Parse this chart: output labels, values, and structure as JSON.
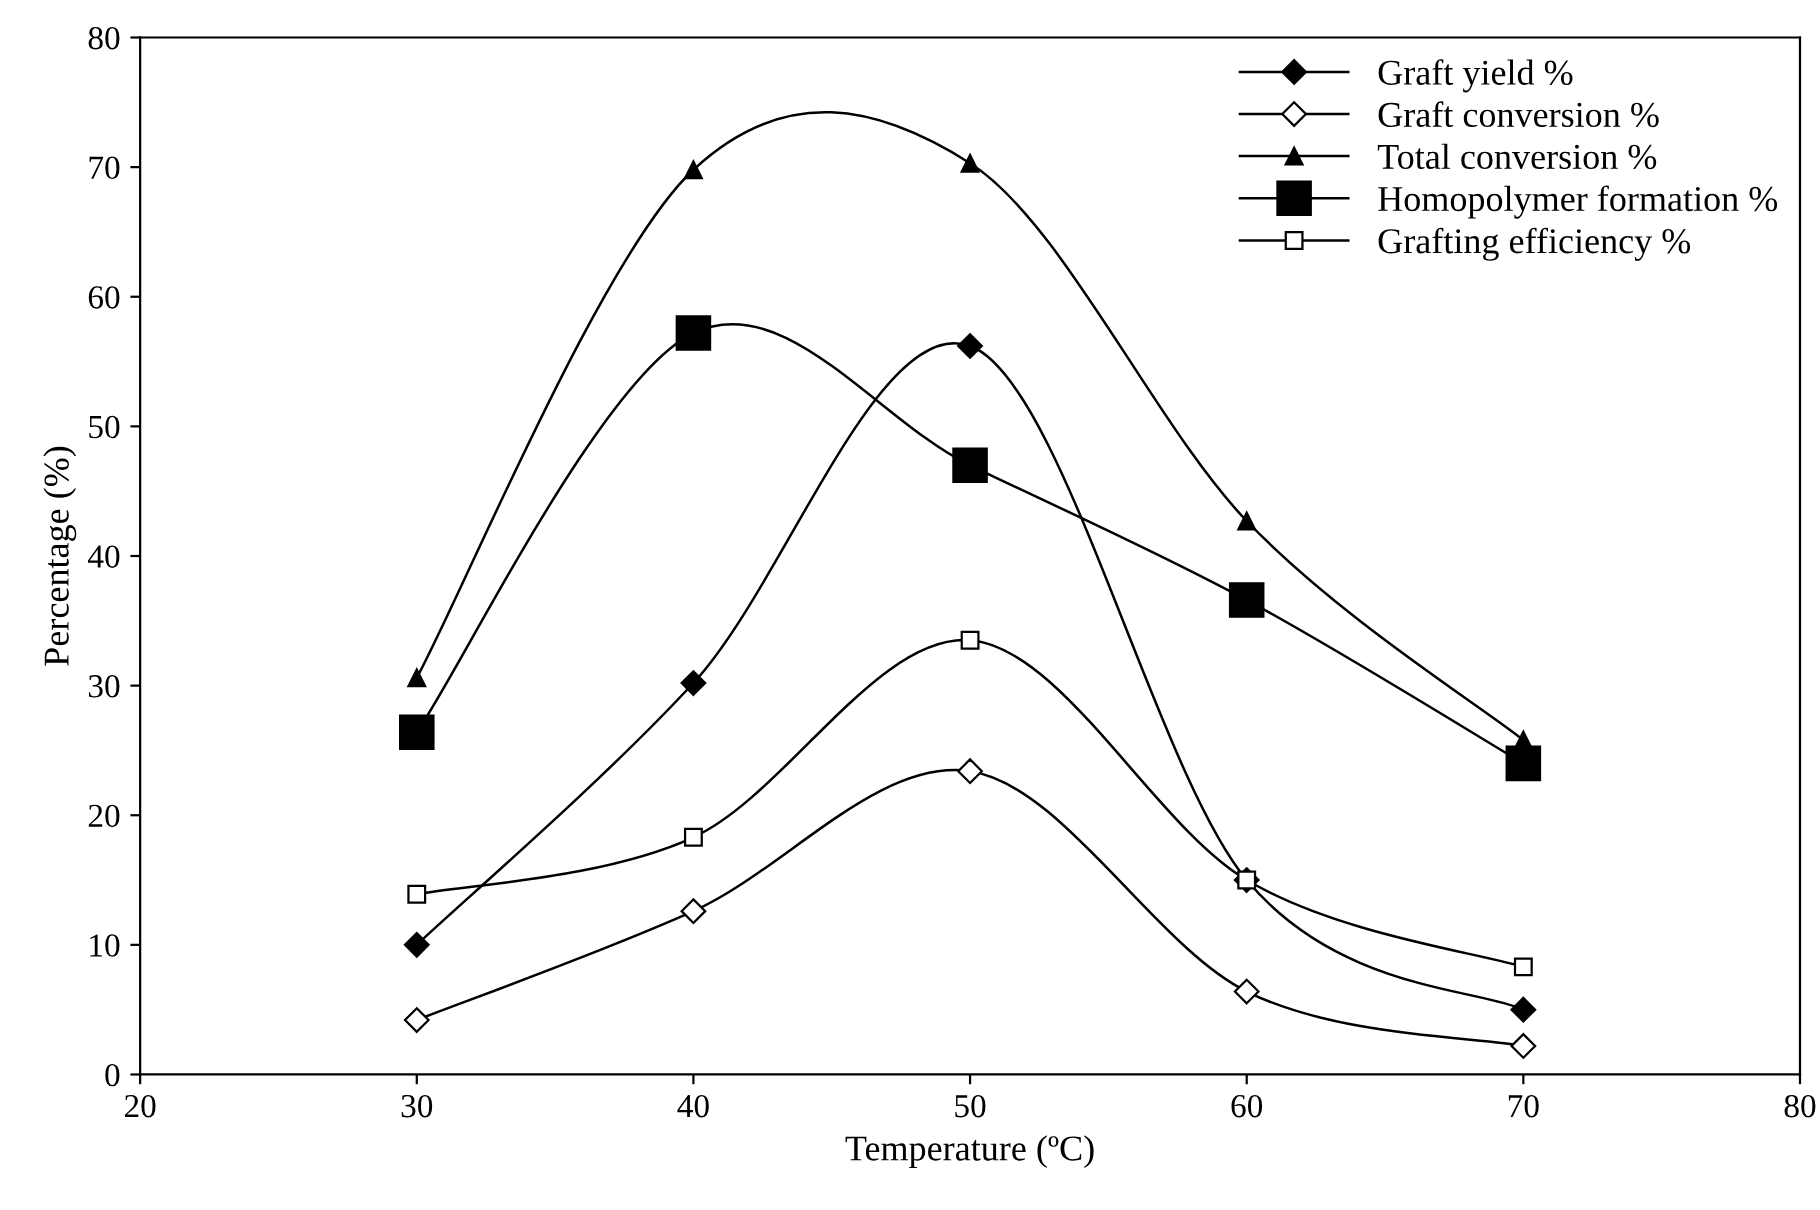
{
  "chart_data": {
    "type": "line",
    "xlabel": "Temperature (ºC)",
    "ylabel": "Percentage (%)",
    "x": [
      30,
      40,
      50,
      60,
      70
    ],
    "series": [
      {
        "name": "Graft yield %",
        "color": "#000000",
        "marker": "diamond",
        "values": [
          10.0,
          30.2,
          56.2,
          15.0,
          5.0
        ]
      },
      {
        "name": "Graft conversion %",
        "color": "#000000",
        "marker": "diamond",
        "values": [
          4.2,
          12.6,
          23.4,
          6.4,
          2.2
        ]
      },
      {
        "name": "Total conversion %",
        "color": "#000000",
        "marker": "triangle",
        "values": [
          30.6,
          69.8,
          70.3,
          42.7,
          25.8
        ]
      },
      {
        "name": "Homopolymer formation %",
        "color": "#000000",
        "marker": "square",
        "values": [
          26.4,
          57.2,
          47.0,
          36.6,
          24.0
        ]
      },
      {
        "name": "Grafting efficiency %",
        "color": "#000000",
        "marker": "square",
        "values": [
          13.9,
          18.3,
          33.5,
          15.0,
          8.3
        ]
      }
    ],
    "xlim": [
      20,
      80
    ],
    "xticks": [
      20,
      30,
      40,
      50,
      60,
      70,
      80
    ],
    "ylim": [
      0,
      80
    ],
    "yticks": [
      0,
      10,
      20,
      30,
      40,
      50,
      60,
      70,
      80
    ],
    "grid": false,
    "legend": "top right"
  }
}
